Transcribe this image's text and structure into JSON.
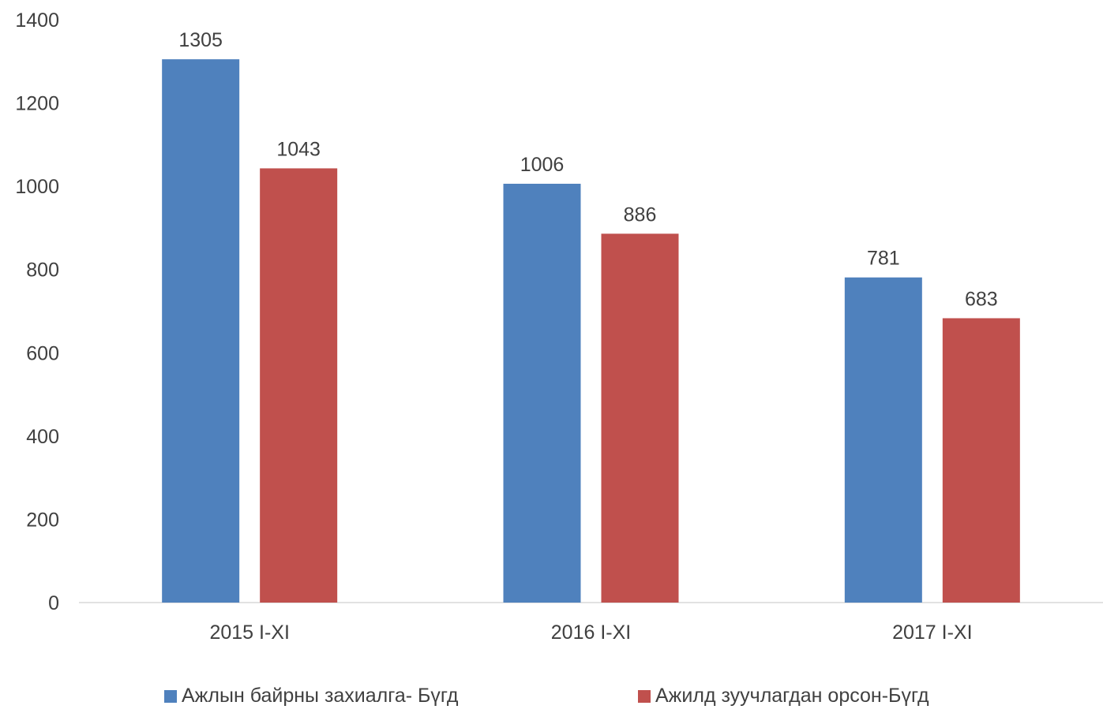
{
  "chart_data": {
    "type": "bar",
    "categories": [
      "2015 I-XI",
      "2016 I-XI",
      "2017 I-XI"
    ],
    "series": [
      {
        "name": "Ажлын байрны захиалга- Бүгд",
        "values": [
          1305,
          1006,
          781
        ],
        "color": "#4F81BD"
      },
      {
        "name": "Ажилд зуучлагдан орсон-Бүгд",
        "values": [
          1043,
          886,
          683
        ],
        "color": "#C0504D"
      }
    ],
    "ylim": [
      0,
      1400
    ],
    "yticks": [
      "0",
      "200",
      "400",
      "600",
      "800",
      "1000",
      "1200",
      "1400"
    ],
    "grid": false,
    "legend_position": "bottom"
  }
}
